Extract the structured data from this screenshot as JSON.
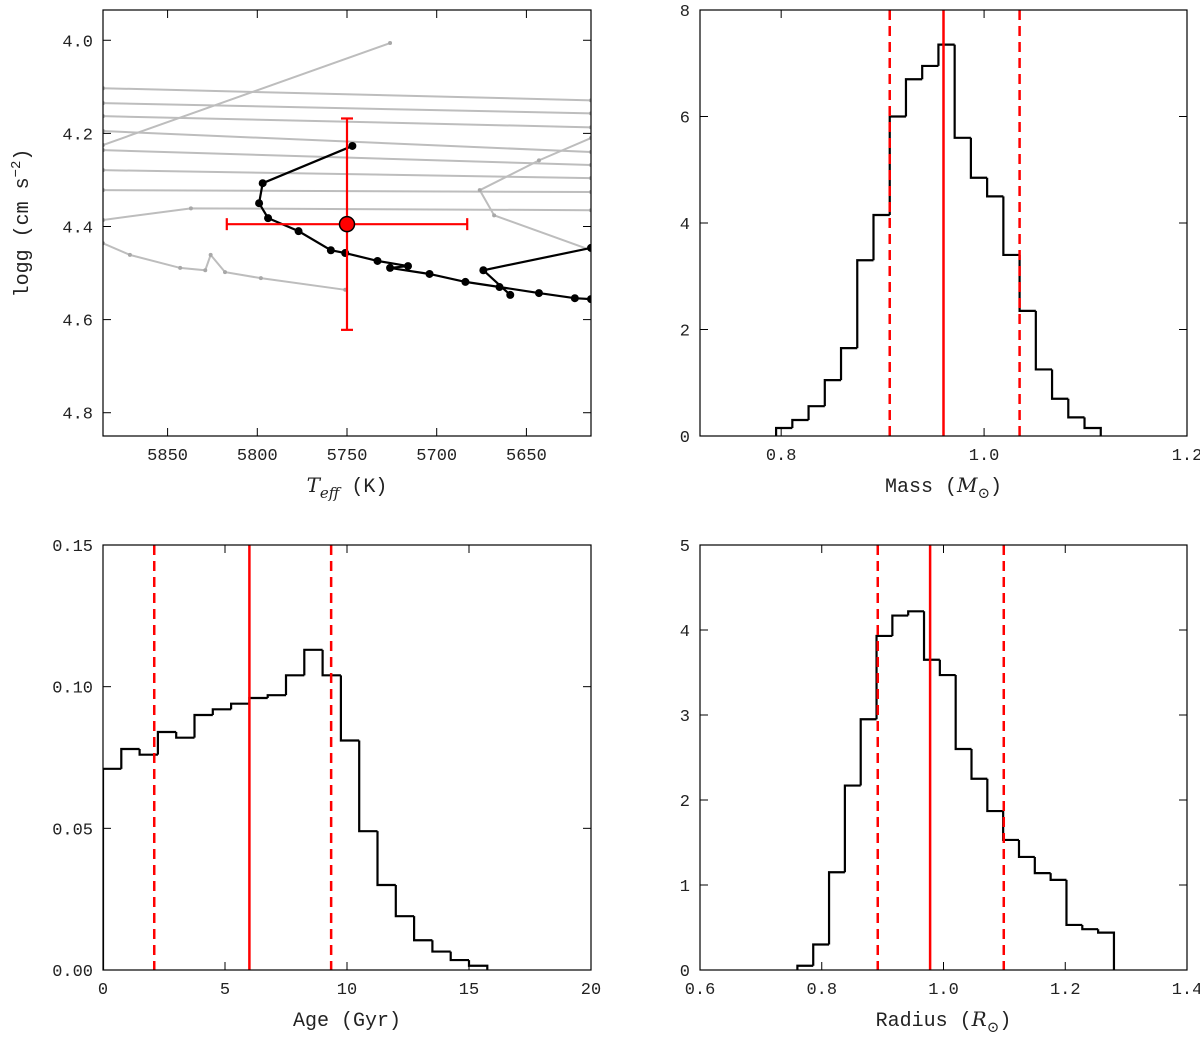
{
  "chart_data": [
    {
      "type": "line",
      "xlabel": [
        {
          "text": "T",
          "style": "italic"
        },
        {
          "text": "eff",
          "style": "italic-sub"
        },
        {
          "text": " (K)"
        }
      ],
      "ylabel": [
        {
          "text": "logg (cm s"
        },
        {
          "text": "−2",
          "style": "sup"
        },
        {
          "text": ")"
        }
      ],
      "xlim": [
        5886,
        5614
      ],
      "xticks": [
        5850,
        5800,
        5750,
        5700,
        5650
      ],
      "ylim": [
        4.85,
        3.935
      ],
      "yticks": [
        {
          "value": 4,
          "label": "4.0"
        },
        4.2,
        4.4,
        4.6,
        4.8
      ],
      "series": [
        {
          "color": "#bdbdbd",
          "markers": true,
          "x": [
            5886,
            5726
          ],
          "y": [
            4.225,
            4.006
          ]
        },
        {
          "color": "#bdbdbd",
          "markers": true,
          "x": [
            5886,
            5614
          ],
          "y": [
            4.103,
            4.129
          ]
        },
        {
          "color": "#bdbdbd",
          "markers": true,
          "x": [
            5886,
            5614
          ],
          "y": [
            4.135,
            4.157
          ]
        },
        {
          "color": "#bdbdbd",
          "markers": true,
          "x": [
            5886,
            5614
          ],
          "y": [
            4.163,
            4.187
          ]
        },
        {
          "color": "#bdbdbd",
          "markers": true,
          "x": [
            5886,
            5614
          ],
          "y": [
            4.195,
            4.24
          ]
        },
        {
          "color": "#bdbdbd",
          "markers": true,
          "x": [
            5886,
            5614
          ],
          "y": [
            4.236,
            4.268
          ]
        },
        {
          "color": "#bdbdbd",
          "markers": true,
          "x": [
            5886,
            5614
          ],
          "y": [
            4.279,
            4.296
          ]
        },
        {
          "color": "#bdbdbd",
          "markers": true,
          "x": [
            5886,
            5614
          ],
          "y": [
            4.322,
            4.326
          ]
        },
        {
          "color": "#bdbdbd",
          "markers": true,
          "x": [
            5886,
            5837,
            5614
          ],
          "y": [
            4.386,
            4.361,
            4.365
          ]
        },
        {
          "color": "#bdbdbd",
          "markers": true,
          "x": [
            5614,
            5643,
            5676,
            5668,
            5614
          ],
          "y": [
            4.21,
            4.258,
            4.322,
            4.376,
            4.451
          ]
        },
        {
          "color": "#bdbdbd",
          "markers": true,
          "x": [
            5886,
            5871,
            5843,
            5829,
            5826,
            5818,
            5798,
            5751
          ],
          "y": [
            4.436,
            4.461,
            4.489,
            4.494,
            4.461,
            4.498,
            4.511,
            4.536
          ]
        },
        {
          "color": "#000000",
          "markers": true,
          "x": [
            5747,
            5797,
            5799,
            5794,
            5777,
            5759,
            5751,
            5733,
            5716,
            5726,
            5704,
            5684,
            5665,
            5643,
            5623,
            5614
          ],
          "y": [
            4.227,
            4.307,
            4.35,
            4.382,
            4.41,
            4.451,
            4.457,
            4.474,
            4.485,
            4.489,
            4.502,
            4.519,
            4.53,
            4.543,
            4.554,
            4.556
          ]
        },
        {
          "color": "#000000",
          "markers": true,
          "x": [
            5614,
            5674,
            5659
          ],
          "y": [
            4.446,
            4.494,
            4.547
          ]
        }
      ],
      "point": {
        "x": 5750,
        "y": 4.395,
        "xerr": 67,
        "yerr": 0.227,
        "color": "#ff0000"
      }
    },
    {
      "type": "histogram",
      "xlabel": [
        {
          "text": "Mass ("
        },
        {
          "text": "M",
          "style": "italic"
        },
        {
          "text": "⊙",
          "style": "italic-sub"
        },
        {
          "text": ")"
        }
      ],
      "xlim": [
        0.72,
        1.2
      ],
      "xticks": [
        0.8,
        {
          "value": 1,
          "label": "1.0"
        },
        1.2
      ],
      "ylim": [
        0,
        8
      ],
      "yticks": [
        0,
        2,
        4,
        6,
        8
      ],
      "bins": [
        0.795,
        0.811,
        0.827,
        0.843,
        0.859,
        0.875,
        0.891,
        0.907,
        0.923,
        0.939,
        0.955,
        0.971,
        0.987,
        1.003,
        1.019,
        1.035,
        1.051,
        1.067,
        1.083,
        1.099,
        1.115
      ],
      "values": [
        0.15,
        0.3,
        0.56,
        1.05,
        1.65,
        3.3,
        4.15,
        6.0,
        6.7,
        6.95,
        7.35,
        5.6,
        4.85,
        4.5,
        3.4,
        2.35,
        1.25,
        0.7,
        0.35,
        0.15
      ],
      "color": "#000000",
      "line_color": "#ff0000",
      "vlines": [
        {
          "x": 0.907,
          "dashed": true
        },
        {
          "x": 0.96,
          "dashed": false
        },
        {
          "x": 1.035,
          "dashed": true
        }
      ]
    },
    {
      "type": "histogram",
      "xlabel": [
        {
          "text": "Age (Gyr)"
        }
      ],
      "xlim": [
        0,
        20
      ],
      "xticks": [
        0,
        5,
        10,
        15,
        20
      ],
      "ylim": [
        0,
        0.15
      ],
      "yticks": [
        {
          "value": 0,
          "label": "0.00"
        },
        {
          "value": 0.05,
          "label": "0.05"
        },
        {
          "value": 0.1,
          "label": "0.10"
        },
        {
          "value": 0.15,
          "label": "0.15"
        }
      ],
      "bins": [
        0,
        0.75,
        1.5,
        2.25,
        3,
        3.75,
        4.5,
        5.25,
        6,
        6.75,
        7.5,
        8.25,
        9,
        9.75,
        10.5,
        11.25,
        12,
        12.75,
        13.5,
        14.25,
        15,
        15.75
      ],
      "values": [
        0.071,
        0.078,
        0.076,
        0.084,
        0.082,
        0.09,
        0.092,
        0.094,
        0.096,
        0.097,
        0.104,
        0.113,
        0.104,
        0.081,
        0.049,
        0.03,
        0.019,
        0.0105,
        0.0065,
        0.0035,
        0.0015
      ],
      "color": "#000000",
      "line_color": "#ff0000",
      "vlines": [
        {
          "x": 2.1,
          "dashed": true
        },
        {
          "x": 6.0,
          "dashed": false
        },
        {
          "x": 9.35,
          "dashed": true
        }
      ]
    },
    {
      "type": "histogram",
      "xlabel": [
        {
          "text": "Radius ("
        },
        {
          "text": "R",
          "style": "italic"
        },
        {
          "text": "⊙",
          "style": "italic-sub"
        },
        {
          "text": ")"
        }
      ],
      "xlim": [
        0.6,
        1.4
      ],
      "xticks": [
        0.6,
        0.8,
        {
          "value": 1,
          "label": "1.0"
        },
        1.2,
        1.4
      ],
      "ylim": [
        0,
        5
      ],
      "yticks": [
        0,
        1,
        2,
        3,
        4,
        5
      ],
      "bins": [
        0.76,
        0.786,
        0.812,
        0.838,
        0.864,
        0.89,
        0.916,
        0.942,
        0.968,
        0.994,
        1.02,
        1.046,
        1.072,
        1.098,
        1.124,
        1.15,
        1.176,
        1.202,
        1.228,
        1.254,
        1.28
      ],
      "values": [
        0.05,
        0.3,
        1.15,
        2.17,
        2.95,
        3.93,
        4.17,
        4.22,
        3.65,
        3.47,
        2.6,
        2.25,
        1.87,
        1.53,
        1.33,
        1.14,
        1.06,
        0.53,
        0.48,
        0.44
      ],
      "color": "#000000",
      "line_color": "#ff0000",
      "vlines": [
        {
          "x": 0.892,
          "dashed": true
        },
        {
          "x": 0.978,
          "dashed": false
        },
        {
          "x": 1.099,
          "dashed": true
        }
      ]
    }
  ]
}
